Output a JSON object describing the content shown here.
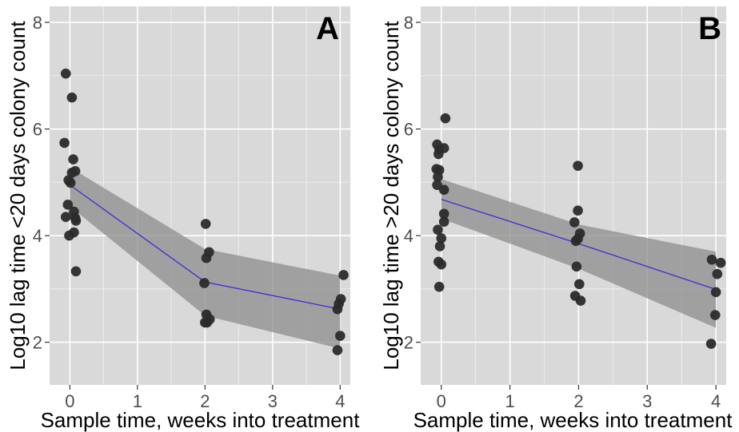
{
  "chart_data": [
    {
      "type": "scatter",
      "panel_label": "A",
      "xlabel": "Sample time, weeks into treatment",
      "ylabel": "Log10 lag time <20 days colony count",
      "xlim": [
        -0.3,
        4.15
      ],
      "ylim": [
        1.2,
        8.3
      ],
      "xticks": [
        0,
        1,
        2,
        3,
        4
      ],
      "yticks": [
        2,
        4,
        6,
        8
      ],
      "grid": true,
      "colors": {
        "panel": "#d9d9d9",
        "grid": "#ffffff",
        "points": "#2b2b2b",
        "fit": "#3a2fd6",
        "band": "#8c8c8c"
      },
      "points": [
        [
          -0.06,
          7.04
        ],
        [
          0.03,
          6.59
        ],
        [
          -0.08,
          5.74
        ],
        [
          0.05,
          5.43
        ],
        [
          0.08,
          5.21
        ],
        [
          0.03,
          5.18
        ],
        [
          -0.02,
          5.04
        ],
        [
          0.01,
          4.99
        ],
        [
          0.06,
          4.45
        ],
        [
          -0.03,
          4.58
        ],
        [
          0.08,
          4.33
        ],
        [
          -0.06,
          4.35
        ],
        [
          0.09,
          4.28
        ],
        [
          0.06,
          4.06
        ],
        [
          -0.01,
          4.0
        ],
        [
          0.09,
          3.33
        ],
        [
          2.01,
          4.22
        ],
        [
          2.06,
          3.69
        ],
        [
          2.02,
          3.58
        ],
        [
          1.99,
          3.11
        ],
        [
          2.02,
          2.52
        ],
        [
          2.07,
          2.43
        ],
        [
          2.03,
          2.37
        ],
        [
          2.0,
          2.37
        ],
        [
          4.05,
          3.26
        ],
        [
          4.01,
          2.81
        ],
        [
          3.98,
          2.72
        ],
        [
          3.96,
          2.62
        ],
        [
          4.0,
          2.12
        ],
        [
          3.96,
          1.85
        ]
      ],
      "fit": {
        "x": [
          0,
          2,
          4
        ],
        "y": [
          4.95,
          3.13,
          2.62
        ]
      },
      "band": {
        "x": [
          0,
          2,
          4
        ],
        "lower": [
          4.55,
          2.5,
          1.88
        ],
        "upper": [
          5.28,
          3.75,
          3.25
        ]
      }
    },
    {
      "type": "scatter",
      "panel_label": "B",
      "xlabel": "Sample time, weeks into treatment",
      "ylabel": "Log10 lag time >20 days colony count",
      "xlim": [
        -0.3,
        4.15
      ],
      "ylim": [
        1.2,
        8.3
      ],
      "xticks": [
        0,
        1,
        2,
        3,
        4
      ],
      "yticks": [
        2,
        4,
        6,
        8
      ],
      "grid": true,
      "colors": {
        "panel": "#d9d9d9",
        "grid": "#ffffff",
        "points": "#2b2b2b",
        "fit": "#3a2fd6",
        "band": "#8c8c8c"
      },
      "points": [
        [
          0.06,
          6.2
        ],
        [
          -0.06,
          5.71
        ],
        [
          0.04,
          5.64
        ],
        [
          -0.03,
          5.62
        ],
        [
          -0.04,
          5.53
        ],
        [
          -0.07,
          5.25
        ],
        [
          -0.03,
          5.23
        ],
        [
          -0.05,
          5.1
        ],
        [
          -0.06,
          4.95
        ],
        [
          0.04,
          4.86
        ],
        [
          0.04,
          4.41
        ],
        [
          0.04,
          4.26
        ],
        [
          -0.05,
          4.11
        ],
        [
          0.0,
          3.95
        ],
        [
          -0.02,
          3.8
        ],
        [
          -0.04,
          3.51
        ],
        [
          0.0,
          3.46
        ],
        [
          -0.03,
          3.04
        ],
        [
          1.99,
          5.31
        ],
        [
          1.99,
          4.47
        ],
        [
          1.94,
          4.25
        ],
        [
          2.02,
          4.04
        ],
        [
          1.99,
          3.94
        ],
        [
          1.96,
          3.9
        ],
        [
          1.97,
          3.42
        ],
        [
          2.01,
          3.09
        ],
        [
          1.95,
          2.87
        ],
        [
          2.03,
          2.78
        ],
        [
          3.94,
          3.55
        ],
        [
          4.07,
          3.49
        ],
        [
          4.02,
          3.28
        ],
        [
          4.0,
          2.94
        ],
        [
          3.99,
          2.51
        ],
        [
          3.93,
          1.97
        ]
      ],
      "fit": {
        "x": [
          0,
          2,
          4
        ],
        "y": [
          4.68,
          3.85,
          2.99
        ]
      },
      "band": {
        "x": [
          0,
          2,
          4
        ],
        "lower": [
          4.32,
          3.38,
          2.27
        ],
        "upper": [
          5.06,
          4.21,
          3.7
        ]
      }
    }
  ]
}
